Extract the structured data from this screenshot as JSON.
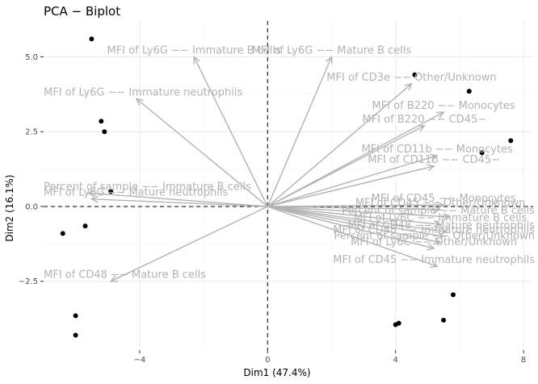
{
  "chart_data": {
    "type": "scatter",
    "title": "PCA − Biplot",
    "xlabel": "Dim1 (47.4%)",
    "ylabel": "Dim2 (16.1%)",
    "xlim": [
      -7,
      8.3
    ],
    "ylim": [
      -4.8,
      6.2
    ],
    "xticks": [
      -4,
      0,
      4,
      8
    ],
    "yticks": [
      -2.5,
      0.0,
      2.5,
      5.0
    ],
    "xtick_labels": [
      "−4",
      "0",
      "4",
      "8"
    ],
    "ytick_labels": [
      "−2.5",
      "0.0",
      "2.5",
      "5.0"
    ],
    "grid": true,
    "zero_lines": true,
    "points": [
      {
        "x": -5.5,
        "y": 5.6
      },
      {
        "x": -5.2,
        "y": 2.85
      },
      {
        "x": -5.1,
        "y": 2.5
      },
      {
        "x": -4.9,
        "y": 0.5
      },
      {
        "x": -5.7,
        "y": -0.65
      },
      {
        "x": -6.4,
        "y": -0.9
      },
      {
        "x": -6.0,
        "y": -3.65
      },
      {
        "x": -6.0,
        "y": -4.3
      },
      {
        "x": 4.6,
        "y": 4.4
      },
      {
        "x": 6.3,
        "y": 3.85
      },
      {
        "x": 6.7,
        "y": 1.8
      },
      {
        "x": 7.6,
        "y": 2.2
      },
      {
        "x": 4.0,
        "y": -3.95
      },
      {
        "x": 4.1,
        "y": -3.9
      },
      {
        "x": 5.5,
        "y": -3.8
      },
      {
        "x": 5.8,
        "y": -2.95
      }
    ],
    "variables": [
      {
        "label": "MFI of Ly6G −− Immature B cells",
        "x": -2.3,
        "y": 5.0
      },
      {
        "label": "MFI of Ly6G −− Mature B cells",
        "x": 2.0,
        "y": 5.0
      },
      {
        "label": "MFI of Ly6G −− Immature neutrophils",
        "x": -4.1,
        "y": 3.6
      },
      {
        "label": "MFI of CD3e −− Other/Unknown",
        "x": 4.5,
        "y": 4.1
      },
      {
        "label": "MFI of B220 −− Monocytes",
        "x": 5.5,
        "y": 3.15
      },
      {
        "label": "MFI of B220 −− CD45−",
        "x": 4.9,
        "y": 2.7
      },
      {
        "label": "MFI of CD11b −− Monocytes",
        "x": 5.3,
        "y": 1.7
      },
      {
        "label": "MFI of CD11b −− CD45−",
        "x": 5.2,
        "y": 1.35
      },
      {
        "label": "Percent of sample −− Immature B cells",
        "x": -5.6,
        "y": 0.45
      },
      {
        "label": "MFI of Ly6G −− Mature neutrophils",
        "x": -5.5,
        "y": 0.25
      },
      {
        "label": "MFI of CD48 −− Mature B cells",
        "x": -4.9,
        "y": -2.5
      },
      {
        "label": "MFI of CD45 −− Monocytes",
        "x": 5.5,
        "y": 0.05
      },
      {
        "label": "MFI of CD45 −− Other/Unknown",
        "x": 5.4,
        "y": -0.1
      },
      {
        "label": "Percent of sample −− Mature B cells",
        "x": 5.7,
        "y": -0.35
      },
      {
        "label": "MFI of Ly6C −− Immature B cells",
        "x": 5.4,
        "y": -0.6
      },
      {
        "label": "MFI of CD48 −− Mature neutrophils",
        "x": 5.6,
        "y": -0.85
      },
      {
        "label": "MFI of CD48 −− Immature neutrophils",
        "x": 5.5,
        "y": -1.0
      },
      {
        "label": "Percent of sample −− Other/Unknown",
        "x": 5.4,
        "y": -1.2
      },
      {
        "label": "MFI of Ly6C −− Other/Unknown",
        "x": 5.2,
        "y": -1.4
      },
      {
        "label": "MFI of CD45 −− Immature neutrophils",
        "x": 5.3,
        "y": -2.0
      }
    ]
  }
}
